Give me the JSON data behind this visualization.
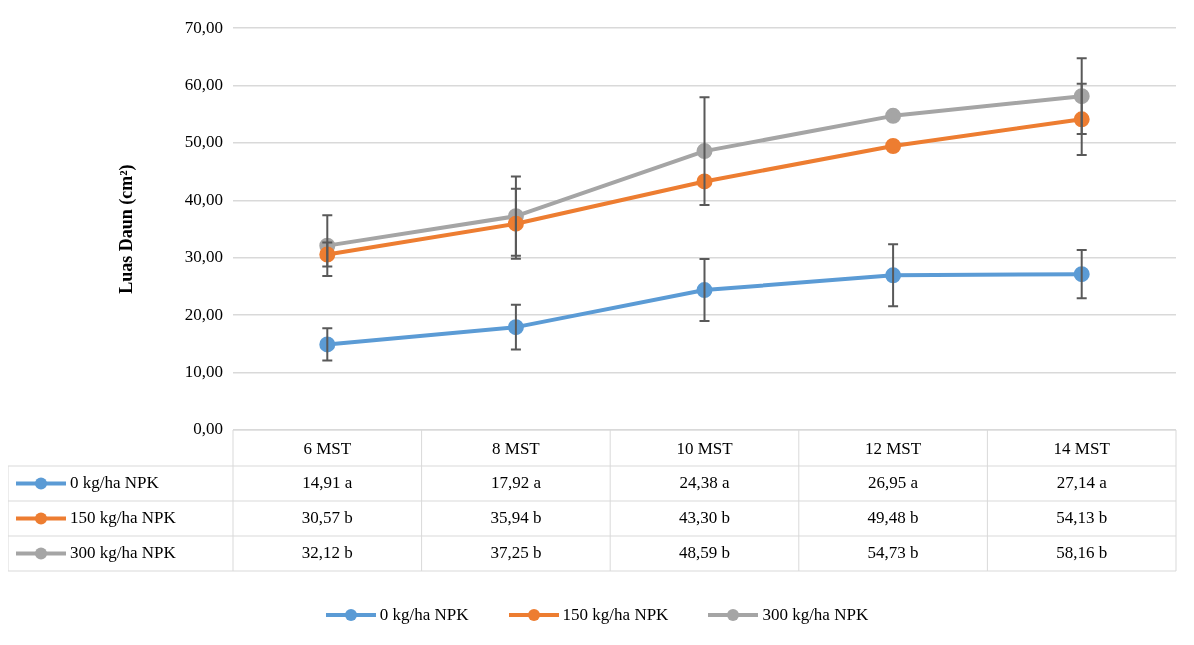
{
  "chart_data": {
    "type": "line",
    "ylabel": "Luas Daun (cm²)",
    "categories": [
      "6 MST",
      "8 MST",
      "10 MST",
      "12 MST",
      "14 MST"
    ],
    "ylim": [
      0,
      70
    ],
    "yticks": [
      {
        "value": 0,
        "label": "0,00"
      },
      {
        "value": 10,
        "label": "10,00"
      },
      {
        "value": 20,
        "label": "20,00"
      },
      {
        "value": 30,
        "label": "30,00"
      },
      {
        "value": 40,
        "label": "40,00"
      },
      {
        "value": 50,
        "label": "50,00"
      },
      {
        "value": 60,
        "label": "60,00"
      },
      {
        "value": 70,
        "label": "70,00"
      }
    ],
    "grid": "y",
    "legend": "bottom",
    "marker": "circle",
    "line_style": "solid",
    "series": [
      {
        "name": "0 kg/ha NPK",
        "color": "#5b9bd5",
        "values": [
          14.91,
          17.92,
          24.38,
          26.95,
          27.14
        ],
        "errors": [
          2.8,
          3.9,
          5.4,
          5.4,
          4.2
        ],
        "value_labels": [
          "14,91 a",
          "17,92 a",
          "24,38 a",
          "26,95 a",
          "27,14 a"
        ]
      },
      {
        "name": "150 kg/ha NPK",
        "color": "#ed7d31",
        "values": [
          30.57,
          35.94,
          43.3,
          49.48,
          54.13
        ],
        "errors": [
          2.1,
          6.1,
          null,
          null,
          6.2
        ],
        "value_labels": [
          "30,57 b",
          "35,94 b",
          "43,30 b",
          "49,48 b",
          "54,13 b"
        ]
      },
      {
        "name": "300 kg/ha NPK",
        "color": "#a5a5a5",
        "values": [
          32.12,
          37.25,
          48.59,
          54.73,
          58.16
        ],
        "errors": [
          5.3,
          6.9,
          9.4,
          null,
          6.6
        ],
        "value_labels": [
          "32,12 b",
          "37,25 b",
          "48,59 b",
          "54,73 b",
          "58,16 b"
        ]
      }
    ]
  }
}
